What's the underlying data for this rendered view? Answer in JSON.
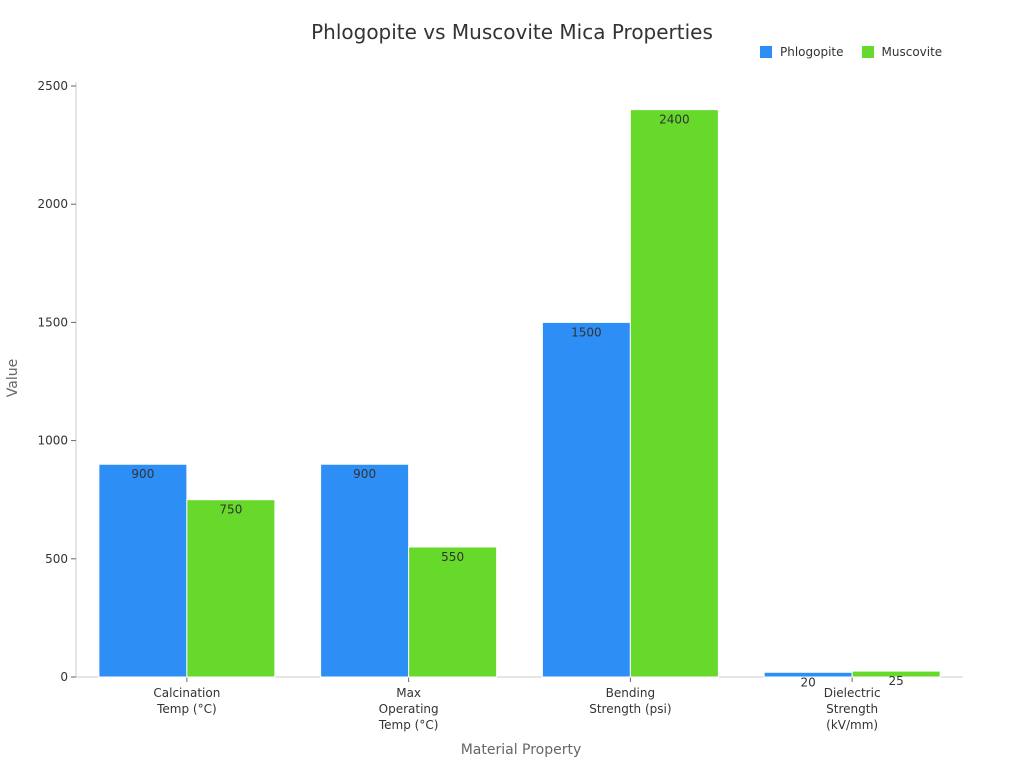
{
  "chart_data": {
    "type": "bar",
    "title": "Phlogopite vs Muscovite Mica Properties",
    "xlabel": "Material Property",
    "ylabel": "Value",
    "categories": [
      [
        "Calcination",
        "Temp (°C)"
      ],
      [
        "Max",
        "Operating",
        "Temp (°C)"
      ],
      [
        "Bending",
        "Strength (psi)"
      ],
      [
        "Dielectric",
        "Strength",
        "(kV/mm)"
      ]
    ],
    "series": [
      {
        "name": "Phlogopite",
        "color": "#2d8ff5",
        "values": [
          900,
          900,
          1500,
          20
        ]
      },
      {
        "name": "Muscovite",
        "color": "#66d92a",
        "values": [
          750,
          550,
          2400,
          25
        ]
      }
    ],
    "ylim": [
      0,
      2500
    ],
    "yticks": [
      0,
      500,
      1000,
      1500,
      2000,
      2500
    ],
    "grid": false,
    "legend_position": "top-right"
  }
}
